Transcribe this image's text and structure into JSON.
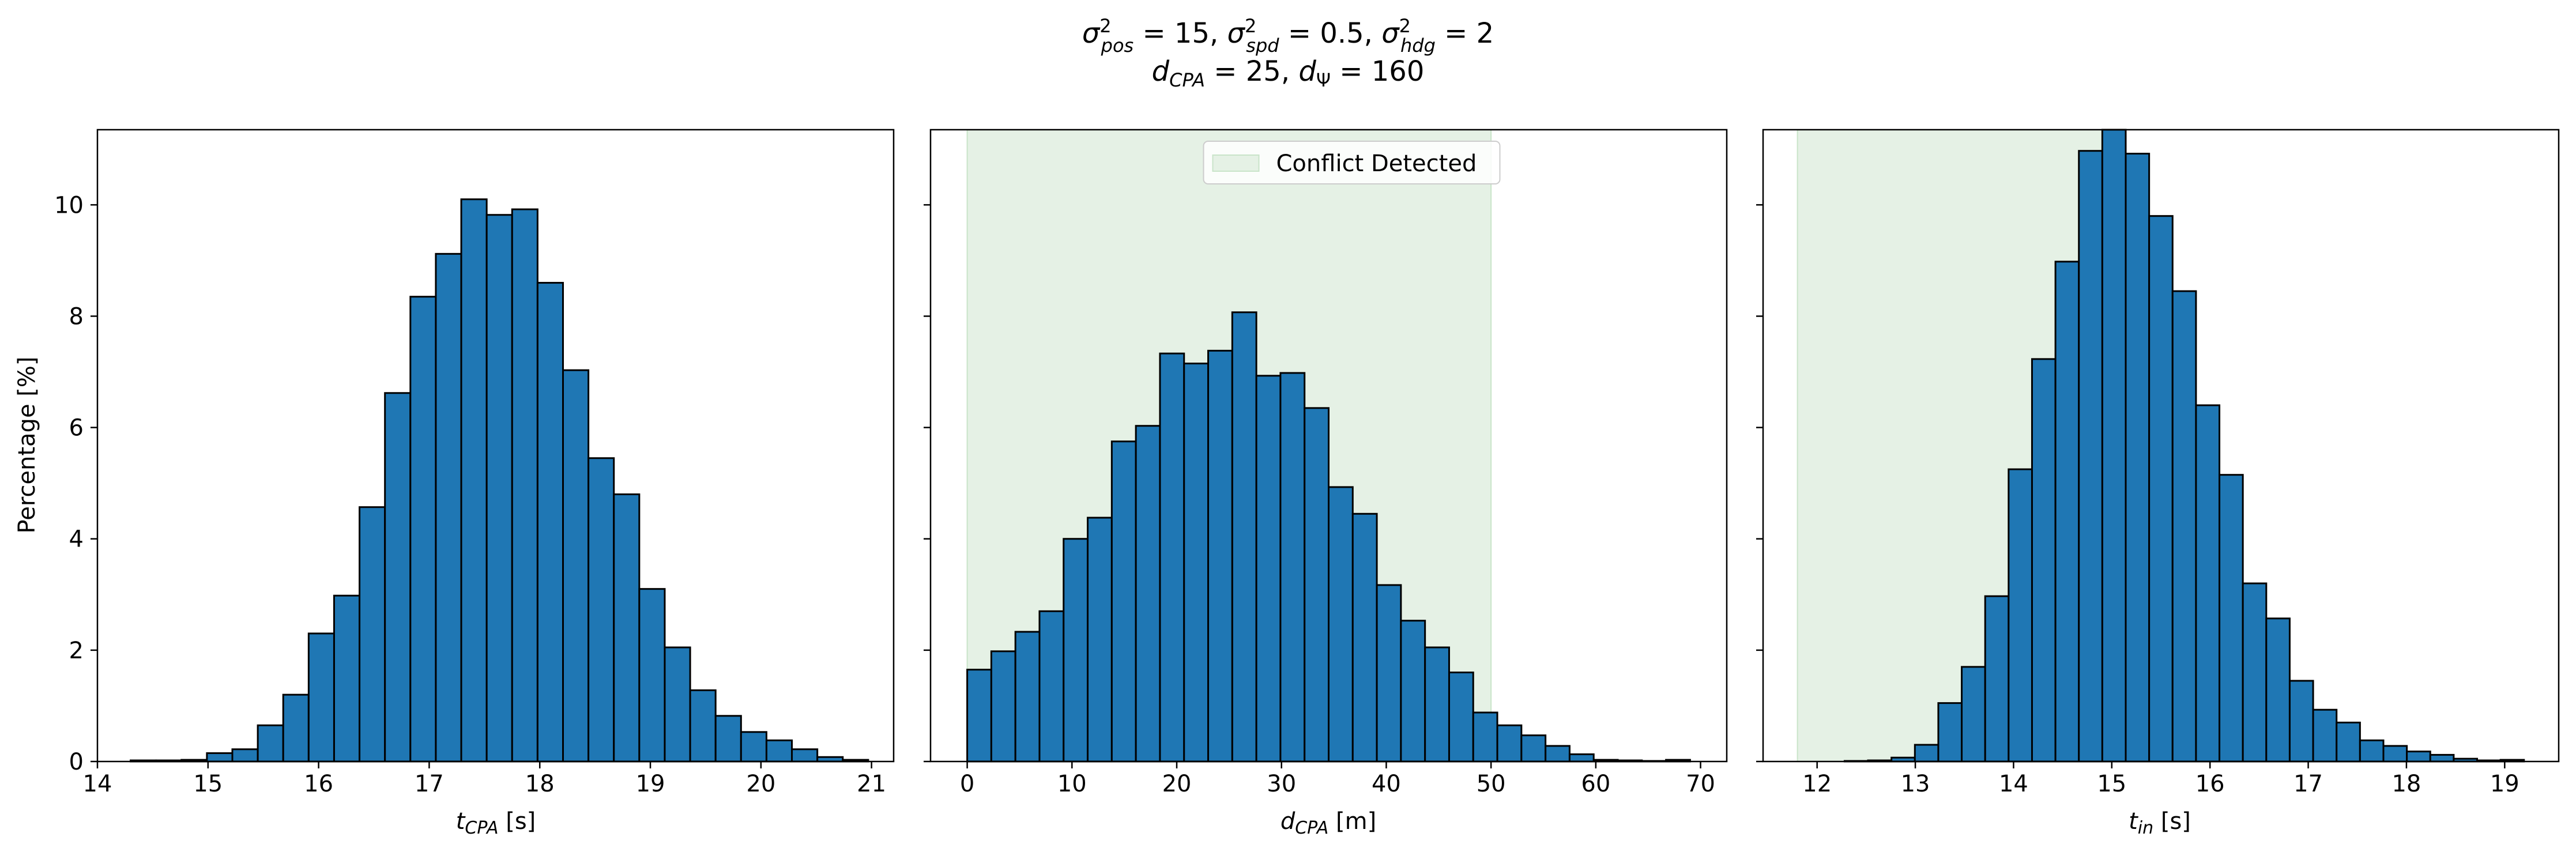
{
  "figure": {
    "title_line1": "σ²pos = 15, σ²spd = 0.5, σ²hdg = 2",
    "title_line2": "dCPA = 25, dΨ = 160"
  },
  "colors": {
    "bar_fill": "#1f77b4",
    "bar_edge": "#000000",
    "shade": "#e5f1e5",
    "shade_edge": "#c9e4c9"
  },
  "chart_data": [
    {
      "type": "bar",
      "xlabel": "tCPA [s]",
      "ylabel": "Percentage [%]",
      "xlim": [
        14.0,
        21.2
      ],
      "ylim": [
        0,
        11.35
      ],
      "xticks": [
        14,
        15,
        16,
        17,
        18,
        19,
        20,
        21
      ],
      "yticks": [
        0,
        2,
        4,
        6,
        8,
        10
      ],
      "grid": false,
      "bin_width": 0.23,
      "bin_starts": [
        14.3,
        14.53,
        14.76,
        14.99,
        15.22,
        15.45,
        15.68,
        15.91,
        16.14,
        16.37,
        16.6,
        16.83,
        17.06,
        17.29,
        17.52,
        17.75,
        17.98,
        18.21,
        18.44,
        18.67,
        18.9,
        19.13,
        19.36,
        19.59,
        19.82,
        20.05,
        20.28,
        20.51,
        20.74
      ],
      "values": [
        0.02,
        0.02,
        0.03,
        0.15,
        0.22,
        0.65,
        1.2,
        2.3,
        2.98,
        4.57,
        6.62,
        8.35,
        9.12,
        10.1,
        9.82,
        9.92,
        8.6,
        7.03,
        5.45,
        4.8,
        3.1,
        2.05,
        1.28,
        0.82,
        0.53,
        0.38,
        0.22,
        0.08,
        0.03
      ]
    },
    {
      "type": "bar",
      "xlabel": "dCPA [m]",
      "xlim": [
        -3.5,
        72.5
      ],
      "ylim": [
        0,
        11.35
      ],
      "xticks": [
        0,
        10,
        20,
        30,
        40,
        50,
        60,
        70
      ],
      "grid": false,
      "shaded_region": {
        "x": [
          0,
          50
        ],
        "label": "Conflict Detected"
      },
      "legend": {
        "position": "top-center",
        "entries": [
          "Conflict Detected"
        ]
      },
      "bin_width": 2.3,
      "bin_starts": [
        0,
        2.3,
        4.6,
        6.9,
        9.2,
        11.5,
        13.8,
        16.1,
        18.4,
        20.7,
        23.0,
        25.3,
        27.6,
        29.9,
        32.2,
        34.5,
        36.8,
        39.1,
        41.4,
        43.7,
        46.0,
        48.3,
        50.6,
        52.9,
        55.2,
        57.5,
        59.8,
        62.1,
        64.4,
        66.7
      ],
      "values": [
        1.65,
        1.98,
        2.33,
        2.7,
        4.0,
        4.38,
        5.75,
        6.03,
        7.33,
        7.15,
        7.38,
        8.07,
        6.93,
        6.98,
        6.35,
        4.93,
        4.45,
        3.17,
        2.53,
        2.05,
        1.6,
        0.88,
        0.65,
        0.47,
        0.28,
        0.13,
        0.03,
        0.02,
        0.01,
        0.03
      ]
    },
    {
      "type": "bar",
      "xlabel": "tin [s]",
      "xlim": [
        11.45,
        19.55
      ],
      "ylim": [
        0,
        11.35
      ],
      "xticks": [
        12,
        13,
        14,
        15,
        16,
        17,
        18,
        19
      ],
      "grid": false,
      "shaded_region": {
        "x": [
          11.8,
          15.0
        ]
      },
      "bin_width": 0.2385,
      "bin_starts": [
        12.28,
        12.5185,
        12.757,
        12.9955,
        13.234,
        13.4725,
        13.711,
        13.9495,
        14.188,
        14.4265,
        14.665,
        14.9035,
        15.142,
        15.3805,
        15.619,
        15.8575,
        16.096,
        16.3345,
        16.573,
        16.8115,
        17.05,
        17.2885,
        17.527,
        17.7655,
        18.004,
        18.2425,
        18.481,
        18.7195,
        18.958
      ],
      "values": [
        0.01,
        0.02,
        0.07,
        0.3,
        1.05,
        1.7,
        2.97,
        5.25,
        7.23,
        8.98,
        10.97,
        11.55,
        10.92,
        9.8,
        8.45,
        6.4,
        5.15,
        3.2,
        2.57,
        1.45,
        0.93,
        0.7,
        0.38,
        0.28,
        0.18,
        0.12,
        0.05,
        0.02,
        0.03
      ]
    }
  ]
}
